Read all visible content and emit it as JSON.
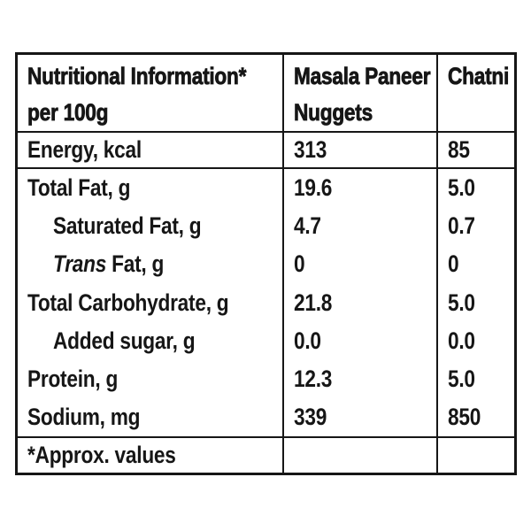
{
  "colors": {
    "ink": "#161616",
    "background": "#ffffff"
  },
  "table": {
    "header": {
      "col1": [
        "Nutritional Information*",
        "per 100g"
      ],
      "col2": [
        "Masala Paneer",
        "Nuggets"
      ],
      "col3": "Chatni"
    },
    "rows": [
      {
        "label": "Energy, kcal",
        "nuggets": "313",
        "chatni": "85"
      },
      {
        "label": "Total Fat, g",
        "nuggets": "19.6",
        "chatni": "5.0"
      },
      {
        "label": "Saturated Fat, g",
        "nuggets": "4.7",
        "chatni": "0.7"
      },
      {
        "label_italic": "Trans",
        "label_rest": " Fat, g",
        "nuggets": "0",
        "chatni": "0"
      },
      {
        "label": "Total Carbohydrate, g",
        "nuggets": "21.8",
        "chatni": "5.0"
      },
      {
        "label": "Added sugar, g",
        "nuggets": "0.0",
        "chatni": "0.0"
      },
      {
        "label": "Protein, g",
        "nuggets": "12.3",
        "chatni": "5.0"
      },
      {
        "label": "Sodium, mg",
        "nuggets": "339",
        "chatni": "850"
      }
    ],
    "footer_note": "*Approx. values"
  }
}
